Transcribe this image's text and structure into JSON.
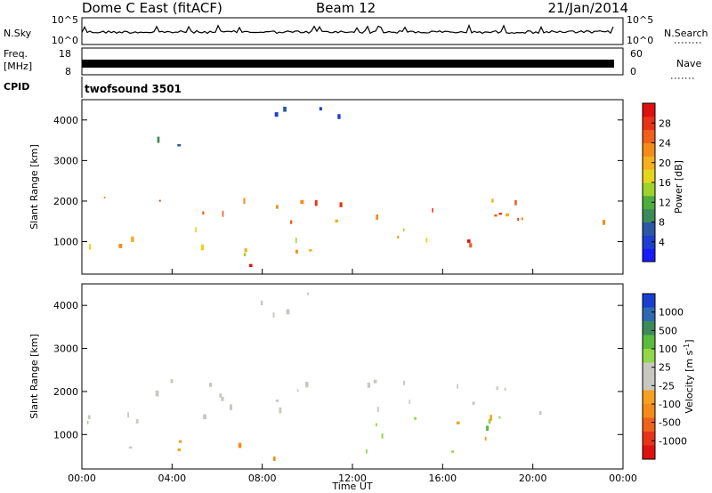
{
  "header": {
    "title": "Dome C East (fitACF)",
    "beam": "Beam 12",
    "date": "21/Jan/2014"
  },
  "strips": {
    "nsky": {
      "label": "N.Sky",
      "top_tick": "10^5",
      "bottom_tick": "10^0",
      "right_top": "10^5",
      "right_bottom": "10^0",
      "right_label": "N.Search"
    },
    "freq": {
      "label_line1": "Freq.",
      "label_line2": "[MHz]",
      "top_tick": "18",
      "bottom_tick": "8",
      "right_top": "60",
      "right_bottom": "0",
      "right_label": "Nave"
    },
    "cpid": {
      "label": "CPID",
      "program": "twofsound 3501"
    }
  },
  "chart_data": [
    {
      "type": "heatmap",
      "name": "Power",
      "ylabel": "Slant Range [km]",
      "yticks": [
        "1000",
        "2000",
        "3000",
        "4000"
      ],
      "ylim": [
        200,
        4500
      ],
      "xticks": [
        "00:00",
        "04:00",
        "08:00",
        "12:00",
        "16:00",
        "20:00",
        "00:00"
      ],
      "xlim_hours": [
        0,
        24
      ],
      "colorbar": {
        "label": "Power [dB]",
        "ticks": [
          "4",
          "8",
          "12",
          "16",
          "20",
          "24",
          "28"
        ],
        "colors": [
          "#1a1aff",
          "#1d3fd0",
          "#2a57a6",
          "#3c8a5a",
          "#4cae3c",
          "#9fd22a",
          "#e6d51e",
          "#f5b01c",
          "#f58a1a",
          "#f0601a",
          "#e83318",
          "#e01010"
        ]
      },
      "features": [
        {
          "t0": 0.0,
          "t1": 24.0,
          "r0": 1450,
          "r1": 2150,
          "level": 0.75
        },
        {
          "t0": 0.0,
          "t1": 12.0,
          "r0": 700,
          "r1": 1450,
          "level": 0.6
        },
        {
          "t0": 6.5,
          "t1": 8.0,
          "r0": 350,
          "r1": 800,
          "level": 0.95
        },
        {
          "t0": 16.5,
          "t1": 19.5,
          "r0": 600,
          "r1": 1900,
          "level": 0.85
        },
        {
          "t0": 12.0,
          "t1": 16.5,
          "r0": 900,
          "r1": 1500,
          "level": 0.45
        },
        {
          "t0": 22.0,
          "t1": 24.0,
          "r0": 300,
          "r1": 700,
          "level": 0.7
        },
        {
          "t0": 1.0,
          "t1": 4.5,
          "r0": 3400,
          "r1": 3800,
          "level": 0.15
        },
        {
          "t0": 7.0,
          "t1": 11.5,
          "r0": 3700,
          "r1": 4400,
          "level": 0.2
        },
        {
          "t0": 10.5,
          "t1": 11.5,
          "r0": 2900,
          "r1": 3300,
          "level": 0.55
        },
        {
          "t0": 5.5,
          "t1": 6.5,
          "r0": 2700,
          "r1": 3000,
          "level": 0.5
        }
      ]
    },
    {
      "type": "heatmap",
      "name": "Velocity",
      "ylabel": "Slant Range [km]",
      "yticks": [
        "1000",
        "2000",
        "3000",
        "4000"
      ],
      "ylim": [
        200,
        4500
      ],
      "xticks": [
        "00:00",
        "04:00",
        "08:00",
        "12:00",
        "16:00",
        "20:00",
        "00:00"
      ],
      "xlabel": "Time UT",
      "xlim_hours": [
        0,
        24
      ],
      "colorbar": {
        "label": "Velocity [m s^-1]",
        "ticks": [
          "1000",
          "500",
          "100",
          "25",
          "-25",
          "-100",
          "-500",
          "-1000"
        ],
        "colors": [
          "#1a3fd0",
          "#2d6ab0",
          "#3c8a5a",
          "#5cba3c",
          "#90d84a",
          "#c8c8c0",
          "#c8c8c0",
          "#f5a020",
          "#f58a1a",
          "#f0601a",
          "#e83318",
          "#e01010"
        ]
      },
      "features": [
        {
          "t0": 0.0,
          "t1": 24.0,
          "r0": 1450,
          "r1": 2300,
          "value": 0
        },
        {
          "t0": 0.0,
          "t1": 4.0,
          "r0": 700,
          "r1": 1400,
          "value": 150
        },
        {
          "t0": 4.0,
          "t1": 9.0,
          "r0": 400,
          "r1": 1200,
          "value": -300
        },
        {
          "t0": 12.5,
          "t1": 20.0,
          "r0": 600,
          "r1": 1500,
          "value": 300
        },
        {
          "t0": 16.5,
          "t1": 19.0,
          "r0": 700,
          "r1": 1600,
          "value": -200
        },
        {
          "t0": 22.0,
          "t1": 24.0,
          "r0": 300,
          "r1": 700,
          "value": -400
        },
        {
          "t0": 7.0,
          "t1": 11.5,
          "r0": 3700,
          "r1": 4400,
          "value": 0
        },
        {
          "t0": 10.5,
          "t1": 11.5,
          "r0": 2900,
          "r1": 3300,
          "value": 100
        }
      ]
    }
  ]
}
